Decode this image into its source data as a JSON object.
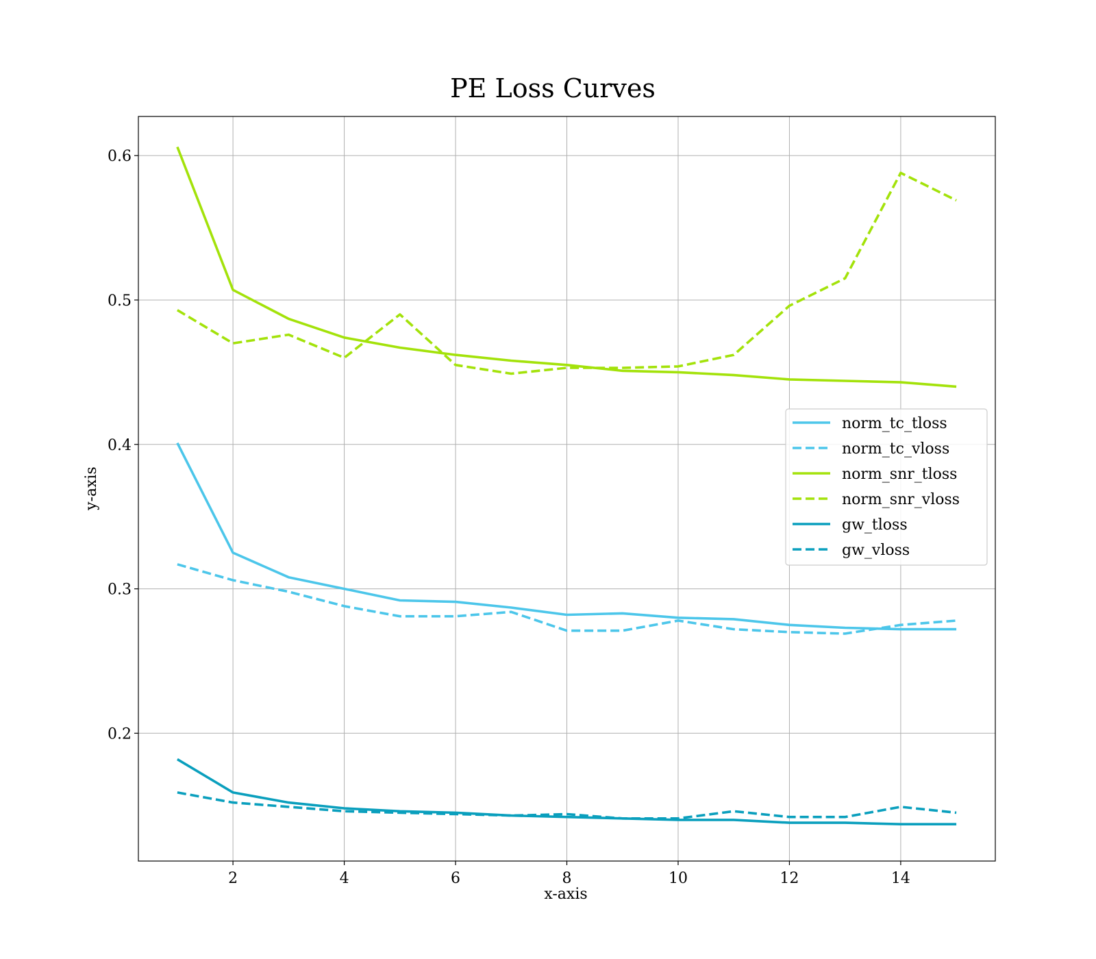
{
  "chart_data": {
    "type": "line",
    "title": "PE Loss Curves",
    "xlabel": "x-axis",
    "ylabel": "y-axis",
    "xlim": [
      0.3,
      15.7
    ],
    "ylim": [
      0.1115,
      0.6271
    ],
    "x_ticks": [
      2,
      4,
      6,
      8,
      10,
      12,
      14
    ],
    "x_tick_labels": [
      "2",
      "4",
      "6",
      "8",
      "10",
      "12",
      "14"
    ],
    "y_ticks": [
      0.2,
      0.3,
      0.4,
      0.5,
      0.6
    ],
    "y_tick_labels": [
      "0.2",
      "0.3",
      "0.4",
      "0.5",
      "0.6"
    ],
    "grid": true,
    "legend_position": "center-right",
    "x": [
      1,
      2,
      3,
      4,
      5,
      6,
      7,
      8,
      9,
      10,
      11,
      12,
      13,
      14,
      15
    ],
    "series": [
      {
        "name": "norm_tc_tloss",
        "color": "#4cc6ea",
        "style": "solid",
        "values": [
          0.401,
          0.325,
          0.308,
          0.3,
          0.292,
          0.291,
          0.287,
          0.282,
          0.283,
          0.28,
          0.279,
          0.275,
          0.273,
          0.272,
          0.272
        ]
      },
      {
        "name": "norm_tc_vloss",
        "color": "#4cc6ea",
        "style": "dashed",
        "values": [
          0.317,
          0.306,
          0.298,
          0.288,
          0.281,
          0.281,
          0.284,
          0.271,
          0.271,
          0.278,
          0.272,
          0.27,
          0.269,
          0.275,
          0.278
        ]
      },
      {
        "name": "norm_snr_tloss",
        "color": "#a3e20a",
        "style": "solid",
        "values": [
          0.606,
          0.507,
          0.487,
          0.474,
          0.467,
          0.462,
          0.458,
          0.455,
          0.451,
          0.45,
          0.448,
          0.445,
          0.444,
          0.443,
          0.44
        ]
      },
      {
        "name": "norm_snr_vloss",
        "color": "#a3e20a",
        "style": "dashed",
        "values": [
          0.493,
          0.47,
          0.476,
          0.46,
          0.49,
          0.455,
          0.449,
          0.453,
          0.453,
          0.454,
          0.462,
          0.496,
          0.515,
          0.588,
          0.569
        ]
      },
      {
        "name": "gw_tloss",
        "color": "#0a9fbd",
        "style": "solid",
        "values": [
          0.182,
          0.159,
          0.152,
          0.148,
          0.146,
          0.145,
          0.143,
          0.142,
          0.141,
          0.14,
          0.14,
          0.138,
          0.138,
          0.137,
          0.137
        ]
      },
      {
        "name": "gw_vloss",
        "color": "#0a9fbd",
        "style": "dashed",
        "values": [
          0.159,
          0.152,
          0.149,
          0.146,
          0.145,
          0.144,
          0.143,
          0.144,
          0.141,
          0.141,
          0.146,
          0.142,
          0.142,
          0.149,
          0.145
        ]
      }
    ]
  }
}
